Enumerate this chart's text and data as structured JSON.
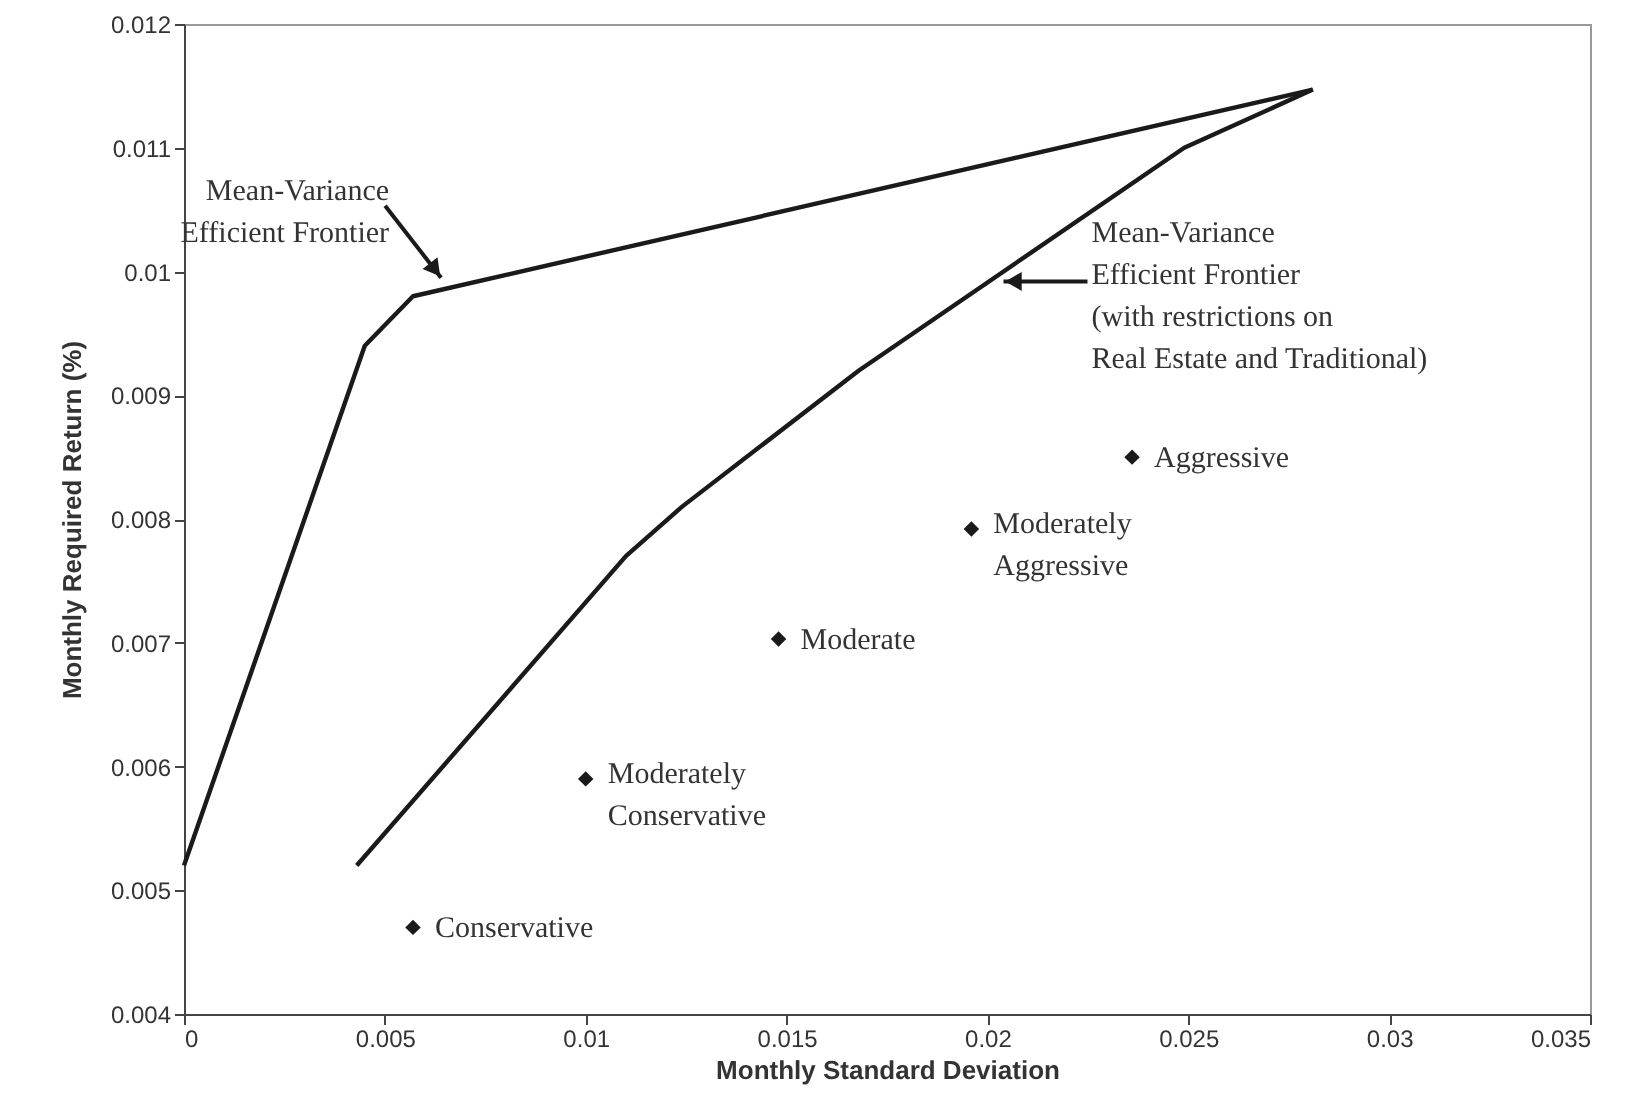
{
  "chart_data": {
    "type": "line",
    "xlabel": "Monthly Standard Deviation",
    "ylabel": "Monthly Required Return (%)",
    "xlim": [
      0,
      0.035
    ],
    "xticks": [
      0,
      0.005,
      0.01,
      0.015,
      0.02,
      0.025,
      0.03,
      0.035
    ],
    "ylim": [
      0.004,
      0.012
    ],
    "yticks": [
      0.004,
      0.005,
      0.006,
      0.007,
      0.008,
      0.009,
      0.01,
      0.011,
      0.012
    ],
    "grid": false,
    "series": [
      {
        "color": "#1a1a1a",
        "x": [
          0,
          0.0045,
          0.0057,
          0.0281
        ],
        "values": [
          0.0052,
          0.0094,
          0.0098,
          0.01147
        ]
      },
      {
        "color": "#1a1a1a",
        "x": [
          0.0043,
          0.011,
          0.0124,
          0.0168,
          0.0249,
          0.0281
        ],
        "values": [
          0.0052,
          0.0077,
          0.0081,
          0.0092,
          0.011,
          0.01147
        ]
      },
      {
        "type": "scatter",
        "marker": "diamond",
        "color": "#1a1a1a",
        "x": [
          0.0057,
          0.01,
          0.0148,
          0.0196,
          0.0236
        ],
        "values": [
          0.0047,
          0.0059,
          0.00703,
          0.00792,
          0.0085
        ]
      }
    ],
    "annotations": [
      {
        "text": "Mean-Variance\nEfficient Frontier",
        "x": 0.0064,
        "y": 0.00995
      },
      {
        "text": "Mean-Variance\nEfficient Frontier\n(with restrictions on\nReal Estate and Traditional)",
        "x": 0.0204,
        "y": 0.00992
      },
      {
        "text": "Conservative",
        "x": 0.0057,
        "y": 0.0047
      },
      {
        "text": "Moderately\nConservative",
        "x": 0.01,
        "y": 0.0059
      },
      {
        "text": "Moderate",
        "x": 0.0148,
        "y": 0.00703
      },
      {
        "text": "Moderately\nAggressive",
        "x": 0.0196,
        "y": 0.00792
      },
      {
        "text": "Aggressive",
        "x": 0.0236,
        "y": 0.0085
      }
    ]
  }
}
